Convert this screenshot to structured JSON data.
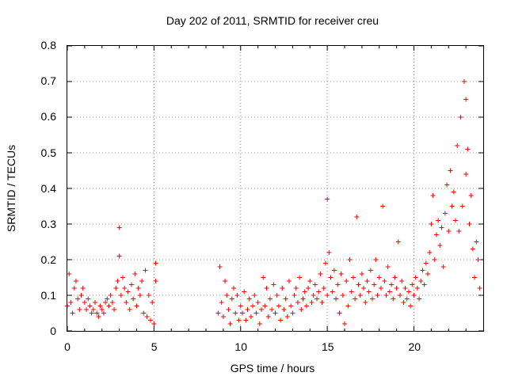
{
  "chart_data": {
    "type": "scatter",
    "title": "Day 202 of 2011, SRMTID for receiver creu",
    "xlabel": "GPS time / hours",
    "ylabel": "SRMTID / TECUs",
    "xlim": [
      0,
      24
    ],
    "ylim": [
      0,
      0.8
    ],
    "x_ticks": [
      0,
      5,
      10,
      15,
      20
    ],
    "x_tick_labels": [
      "0",
      "5",
      "10",
      "15",
      "20"
    ],
    "y_ticks": [
      0,
      0.1,
      0.2,
      0.3,
      0.4,
      0.5,
      0.6,
      0.7,
      0.8
    ],
    "y_tick_labels": [
      "0",
      "0.1",
      "0.2",
      "0.3",
      "0.4",
      "0.5",
      "0.6",
      "0.7",
      "0.8"
    ],
    "grid": true,
    "marker": "+",
    "marker_color": "#ff0000",
    "data_gap_hours": [
      5.2,
      8.6
    ],
    "series": [
      {
        "name": "SRMTID",
        "x": [
          0.0,
          0.1,
          0.2,
          0.3,
          0.4,
          0.5,
          0.6,
          0.7,
          0.8,
          0.9,
          1.0,
          1.1,
          1.2,
          1.3,
          1.4,
          1.5,
          1.6,
          1.7,
          1.8,
          1.9,
          2.0,
          2.1,
          2.2,
          2.3,
          2.4,
          2.5,
          2.6,
          2.7,
          2.8,
          2.9,
          3.0,
          3.0,
          3.1,
          3.2,
          3.3,
          3.4,
          3.5,
          3.6,
          3.7,
          3.8,
          3.9,
          4.0,
          4.1,
          4.2,
          4.3,
          4.4,
          4.5,
          4.6,
          4.7,
          4.8,
          4.9,
          5.0,
          5.1,
          5.1,
          8.7,
          8.8,
          8.9,
          9.0,
          9.1,
          9.2,
          9.3,
          9.4,
          9.5,
          9.6,
          9.7,
          9.8,
          9.9,
          10.0,
          10.1,
          10.2,
          10.3,
          10.4,
          10.5,
          10.6,
          10.7,
          10.8,
          10.9,
          11.0,
          11.1,
          11.2,
          11.3,
          11.4,
          11.5,
          11.6,
          11.7,
          11.8,
          11.9,
          12.0,
          12.1,
          12.2,
          12.3,
          12.4,
          12.5,
          12.6,
          12.7,
          12.8,
          12.9,
          13.0,
          13.1,
          13.2,
          13.3,
          13.4,
          13.5,
          13.6,
          13.7,
          13.8,
          13.9,
          14.0,
          14.1,
          14.2,
          14.3,
          14.4,
          14.5,
          14.6,
          14.7,
          14.8,
          14.9,
          15.0,
          15.0,
          15.1,
          15.2,
          15.3,
          15.4,
          15.5,
          15.6,
          15.7,
          15.8,
          15.9,
          16.0,
          16.1,
          16.2,
          16.3,
          16.4,
          16.5,
          16.6,
          16.7,
          16.8,
          16.9,
          17.0,
          17.1,
          17.2,
          17.3,
          17.4,
          17.5,
          17.6,
          17.7,
          17.8,
          17.9,
          18.0,
          18.1,
          18.2,
          18.3,
          18.4,
          18.5,
          18.6,
          18.7,
          18.8,
          18.9,
          19.0,
          19.1,
          19.2,
          19.3,
          19.4,
          19.5,
          19.6,
          19.7,
          19.8,
          19.9,
          20.0,
          20.1,
          20.2,
          20.3,
          20.4,
          20.5,
          20.6,
          20.7,
          20.8,
          20.9,
          21.0,
          21.1,
          21.2,
          21.3,
          21.4,
          21.5,
          21.6,
          21.7,
          21.8,
          21.9,
          22.0,
          22.1,
          22.2,
          22.3,
          22.4,
          22.5,
          22.6,
          22.7,
          22.8,
          22.9,
          23.0,
          23.0,
          23.1,
          23.2,
          23.3,
          23.4,
          23.5,
          23.6,
          23.7,
          23.8
        ],
        "y": [
          0.07,
          0.16,
          0.08,
          0.05,
          0.12,
          0.14,
          0.09,
          0.06,
          0.1,
          0.12,
          0.08,
          0.06,
          0.09,
          0.07,
          0.05,
          0.06,
          0.08,
          0.05,
          0.04,
          0.07,
          0.06,
          0.05,
          0.08,
          0.09,
          0.07,
          0.1,
          0.08,
          0.06,
          0.12,
          0.14,
          0.29,
          0.21,
          0.1,
          0.15,
          0.12,
          0.08,
          0.11,
          0.06,
          0.13,
          0.09,
          0.16,
          0.07,
          0.12,
          0.1,
          0.14,
          0.05,
          0.17,
          0.04,
          0.1,
          0.03,
          0.08,
          0.02,
          0.19,
          0.14,
          0.05,
          0.18,
          0.08,
          0.04,
          0.14,
          0.1,
          0.06,
          0.02,
          0.09,
          0.12,
          0.05,
          0.1,
          0.03,
          0.07,
          0.05,
          0.11,
          0.03,
          0.06,
          0.09,
          0.04,
          0.07,
          0.1,
          0.05,
          0.08,
          0.02,
          0.06,
          0.15,
          0.07,
          0.12,
          0.04,
          0.09,
          0.06,
          0.13,
          0.05,
          0.1,
          0.07,
          0.03,
          0.12,
          0.06,
          0.09,
          0.04,
          0.14,
          0.07,
          0.05,
          0.1,
          0.12,
          0.08,
          0.15,
          0.06,
          0.09,
          0.11,
          0.07,
          0.12,
          0.14,
          0.08,
          0.1,
          0.13,
          0.09,
          0.11,
          0.16,
          0.08,
          0.12,
          0.19,
          0.1,
          0.37,
          0.22,
          0.15,
          0.11,
          0.17,
          0.09,
          0.13,
          0.05,
          0.16,
          0.1,
          0.02,
          0.14,
          0.07,
          0.2,
          0.11,
          0.15,
          0.09,
          0.32,
          0.13,
          0.1,
          0.16,
          0.12,
          0.08,
          0.14,
          0.11,
          0.17,
          0.09,
          0.13,
          0.2,
          0.1,
          0.15,
          0.12,
          0.35,
          0.14,
          0.1,
          0.18,
          0.11,
          0.13,
          0.09,
          0.15,
          0.12,
          0.25,
          0.1,
          0.14,
          0.08,
          0.12,
          0.09,
          0.11,
          0.07,
          0.13,
          0.1,
          0.15,
          0.12,
          0.09,
          0.14,
          0.17,
          0.13,
          0.19,
          0.16,
          0.22,
          0.3,
          0.38,
          0.2,
          0.27,
          0.31,
          0.24,
          0.29,
          0.18,
          0.33,
          0.41,
          0.28,
          0.45,
          0.35,
          0.39,
          0.31,
          0.52,
          0.28,
          0.6,
          0.35,
          0.7,
          0.65,
          0.44,
          0.51,
          0.3,
          0.38,
          0.23,
          0.15,
          0.25,
          0.2,
          0.12
        ]
      }
    ]
  }
}
